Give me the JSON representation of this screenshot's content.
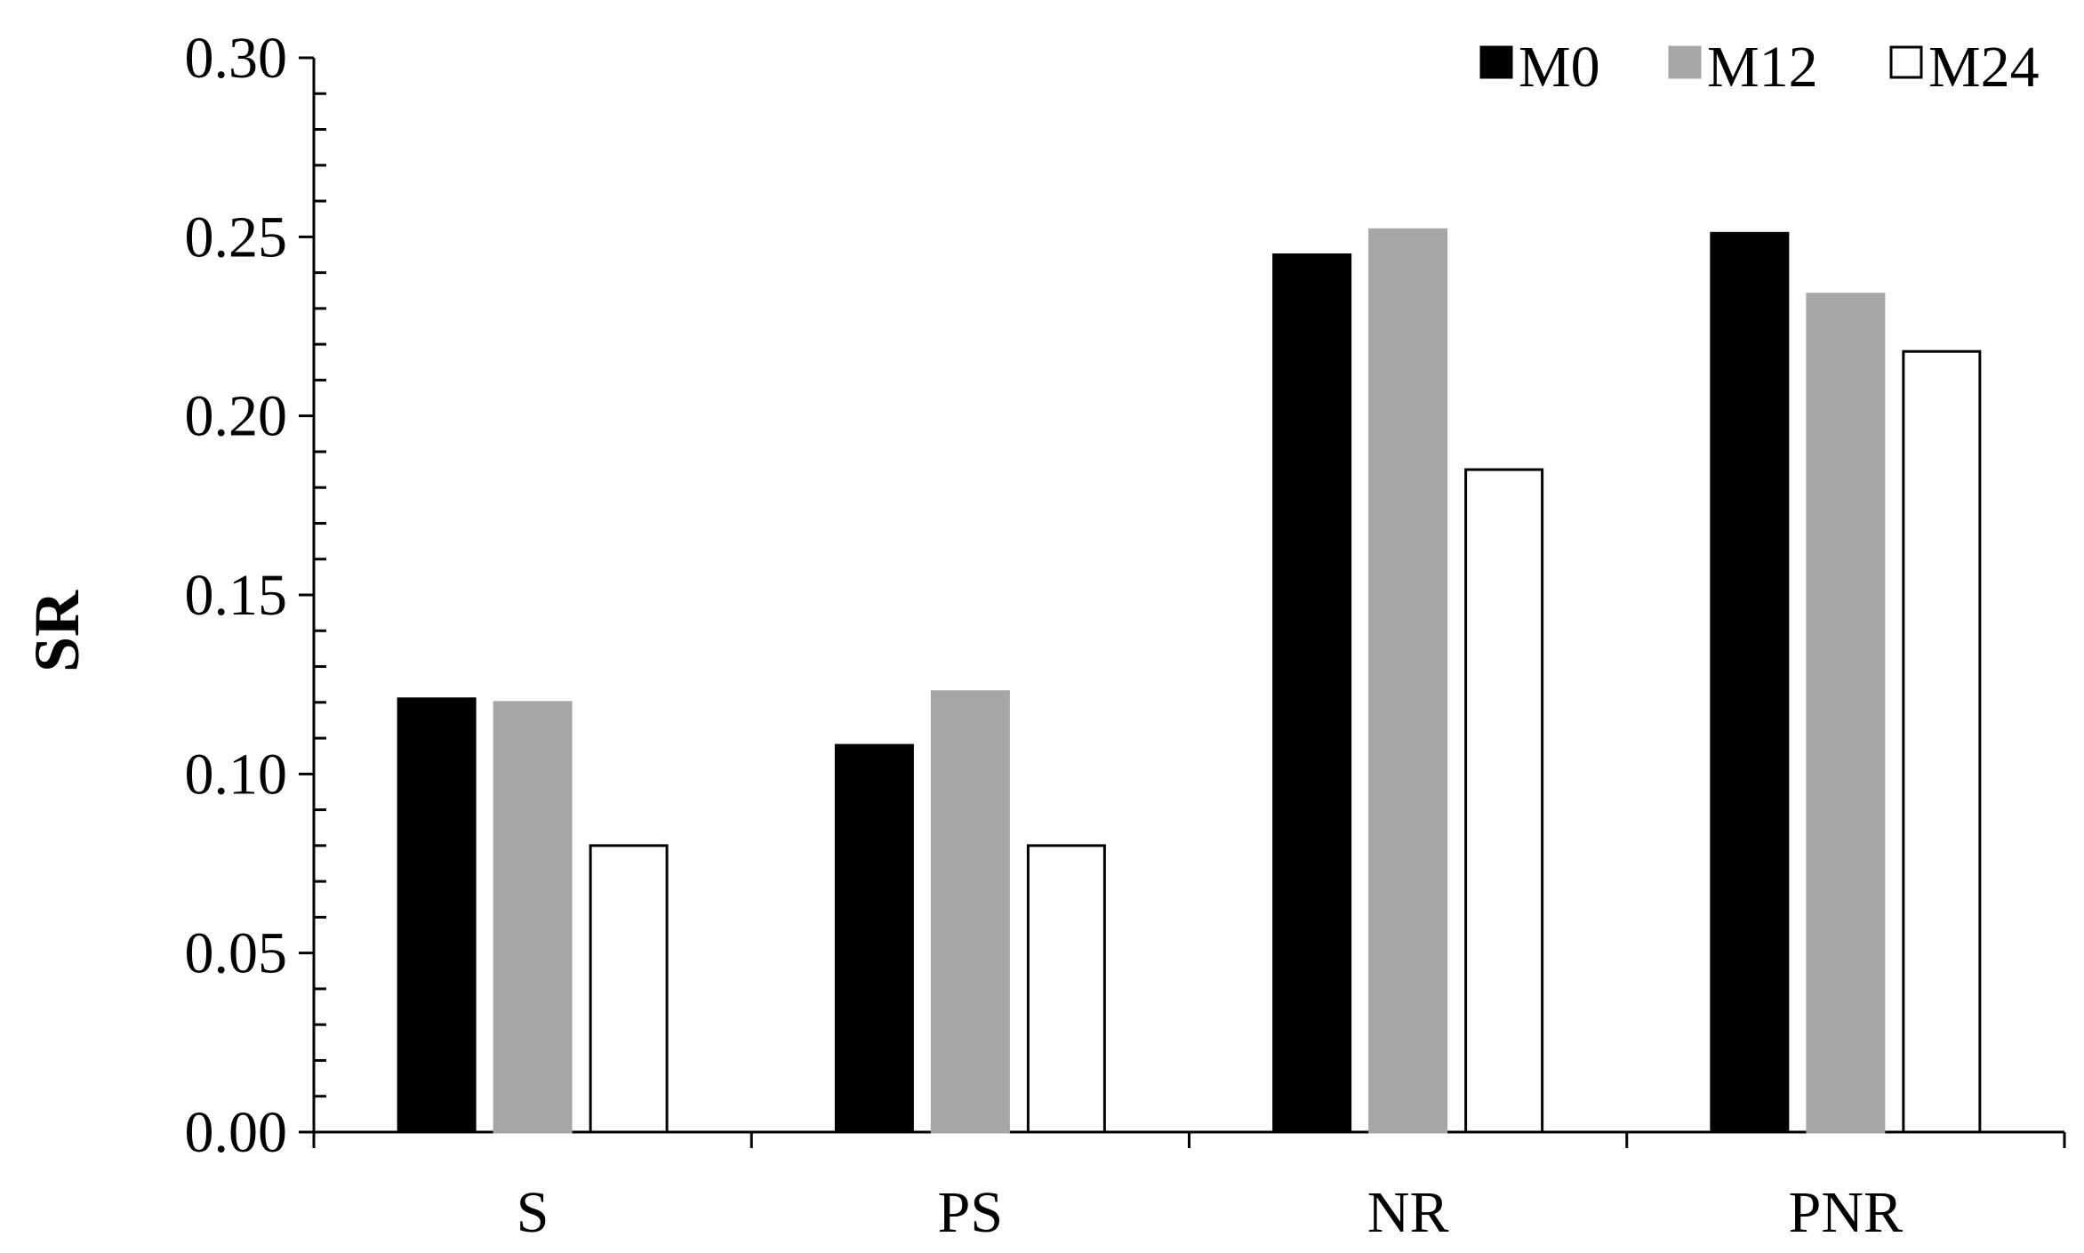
{
  "chart_data": {
    "type": "bar",
    "title": "",
    "xlabel": "",
    "ylabel": "SR",
    "ylim": [
      0,
      0.3
    ],
    "yticks": [
      "0.00",
      "0.05",
      "0.10",
      "0.15",
      "0.20",
      "0.25",
      "0.30"
    ],
    "minor_ticks_per_major": 5,
    "grid": false,
    "legend_position": "top-right",
    "categories": [
      "S",
      "PS",
      "NR",
      "PNR"
    ],
    "series": [
      {
        "name": "M0",
        "color": "#000000",
        "stroke": "#000000",
        "values": [
          0.121,
          0.108,
          0.245,
          0.251
        ]
      },
      {
        "name": "M12",
        "color": "#a6a6a6",
        "stroke": "#a6a6a6",
        "values": [
          0.12,
          0.123,
          0.252,
          0.234
        ]
      },
      {
        "name": "M24",
        "color": "#ffffff",
        "stroke": "#000000",
        "values": [
          0.08,
          0.08,
          0.185,
          0.218
        ]
      }
    ]
  }
}
